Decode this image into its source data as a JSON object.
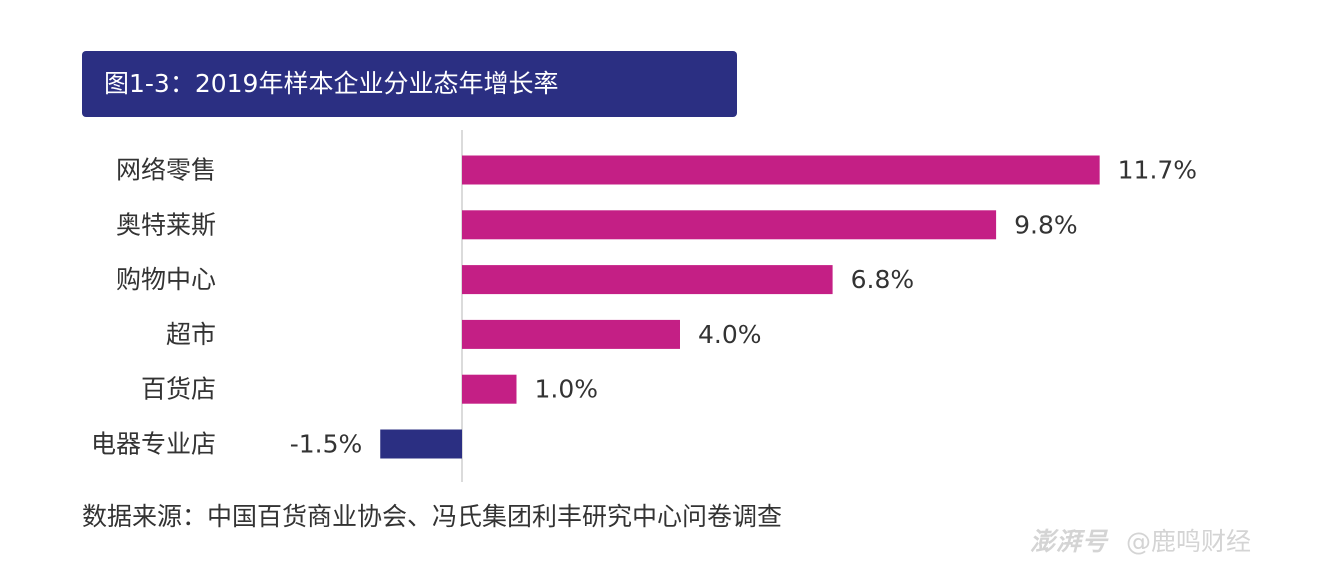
{
  "title": "图1-3：2019年样本企业分业态年增长率",
  "chart_data": {
    "type": "bar",
    "orientation": "horizontal",
    "categories": [
      "网络零售",
      "奥特莱斯",
      "购物中心",
      "超市",
      "百货店",
      "电器专业店"
    ],
    "values": [
      11.7,
      9.8,
      6.8,
      4.0,
      1.0,
      -1.5
    ],
    "value_labels": [
      "11.7%",
      "9.8%",
      "6.8%",
      "4.0%",
      "1.0%",
      "-1.5%"
    ],
    "unit": "%",
    "xlim": [
      -1.5,
      11.7
    ],
    "grid": false,
    "legend": "none",
    "colors": {
      "positive": "#c41f85",
      "negative": "#2b2f82",
      "axis": "#cfcfcf"
    }
  },
  "source": "数据来源：中国百货商业协会、冯氏集团利丰研究中心问卷调查",
  "watermark": {
    "logo": "澎湃号",
    "handle": "@鹿鸣财经"
  }
}
